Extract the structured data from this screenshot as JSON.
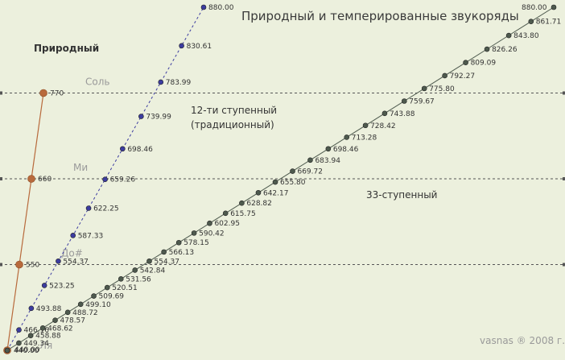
{
  "chart_data": {
    "type": "line",
    "title": "Природный и темперированные звукоряды",
    "subtitle": "",
    "xlabel": "",
    "ylabel": "",
    "ylim": [
      440,
      880
    ],
    "grid": {
      "dashed_horizontal_at": [
        550,
        660,
        770
      ]
    },
    "series": [
      {
        "name": "Природный",
        "color": "#b86a3c",
        "style": "solid",
        "notes": [
          "Ля",
          "До#",
          "Ми",
          "Соль"
        ],
        "values": [
          440,
          550,
          660,
          770
        ],
        "labels": [
          "440.00",
          "550",
          "660",
          "770"
        ]
      },
      {
        "name": "12-ти ступенный (традиционный)",
        "color": "#3c3ca0",
        "style": "dashed",
        "values": [
          440.0,
          466.16,
          493.88,
          523.25,
          554.37,
          587.33,
          622.25,
          659.26,
          698.46,
          739.99,
          783.99,
          830.61,
          880.0
        ],
        "labels": [
          "440.00",
          "466.16",
          "493.88",
          "523.25",
          "554.37",
          "587.33",
          "622.25",
          "659.26",
          "698.46",
          "739.99",
          "783.99",
          "830.61",
          "880.00"
        ]
      },
      {
        "name": "33-ступенный",
        "color": "#4e5a4e",
        "style": "solid",
        "values": [
          440.0,
          449.34,
          458.88,
          468.62,
          478.57,
          488.72,
          499.1,
          509.69,
          520.51,
          531.56,
          542.84,
          554.37,
          566.13,
          578.15,
          590.42,
          602.95,
          615.75,
          628.82,
          642.17,
          655.8,
          669.72,
          683.94,
          698.46,
          713.28,
          728.42,
          743.88,
          759.67,
          775.8,
          792.27,
          809.09,
          826.26,
          843.8,
          861.71,
          880.0
        ],
        "labels": [
          "440.00",
          "449.34",
          "458.88",
          "468.62",
          "478.57",
          "488.72",
          "499.10",
          "509.69",
          "520.51",
          "531.56",
          "542.84",
          "554.37",
          "566.13",
          "578.15",
          "590.42",
          "602.95",
          "615.75",
          "628.82",
          "642.17",
          "655.80",
          "669.72",
          "683.94",
          "698.46",
          "713.28",
          "728.42",
          "743.88",
          "759.67",
          "775.80",
          "792.27",
          "809.09",
          "826.26",
          "843.80",
          "861.71",
          "880.00"
        ]
      }
    ],
    "annotations": {
      "natural": "Природный",
      "twelve_line1": "12-ти ступенный",
      "twelve_line2": "(традиционный)",
      "thirtythree": "33-ступенный",
      "credit": "vasnas ® 2008 г."
    }
  }
}
